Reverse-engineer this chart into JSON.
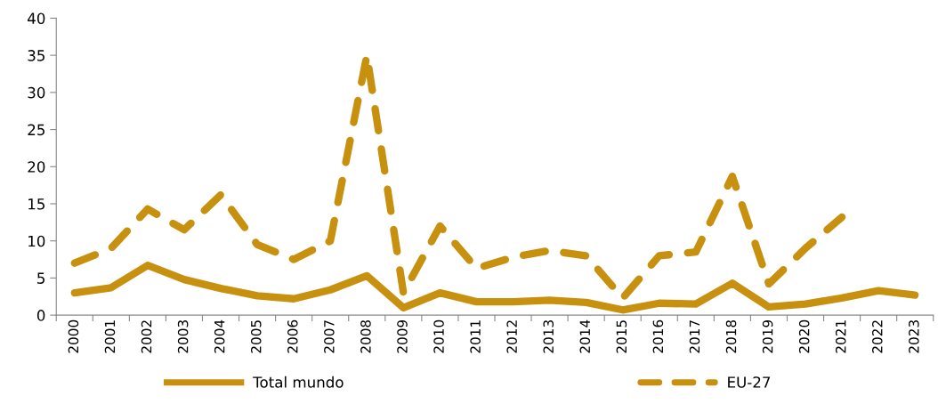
{
  "chart_data": {
    "type": "line",
    "categories": [
      "2000",
      "2001",
      "2002",
      "2003",
      "2004",
      "2005",
      "2006",
      "2007",
      "2008",
      "2009",
      "2010",
      "2011",
      "2012",
      "2013",
      "2014",
      "2015",
      "2016",
      "2017",
      "2018",
      "2019",
      "2020",
      "2021",
      "2022",
      "2023"
    ],
    "series": [
      {
        "name": "Total mundo",
        "color": "#c8900f",
        "line_style": "solid",
        "values": [
          3.0,
          3.7,
          6.7,
          4.8,
          3.6,
          2.6,
          2.2,
          3.4,
          5.3,
          1.0,
          3.0,
          1.8,
          1.8,
          2.0,
          1.7,
          0.7,
          1.6,
          1.5,
          4.3,
          1.1,
          1.5,
          2.3,
          3.3,
          2.7
        ]
      },
      {
        "name": "EU-27",
        "color": "#c8900f",
        "line_style": "dashed",
        "values": [
          7.0,
          9.0,
          14.3,
          11.5,
          16.2,
          9.5,
          7.5,
          10.0,
          35.0,
          3.0,
          12.0,
          6.3,
          7.8,
          8.7,
          8.0,
          2.3,
          8.0,
          8.5,
          18.7,
          4.2,
          9.0,
          13.2,
          null,
          null
        ]
      }
    ],
    "ylim": [
      0,
      40
    ],
    "yticks": [
      0,
      5,
      10,
      15,
      20,
      25,
      30,
      35,
      40
    ],
    "grid": false,
    "legend": "bottom",
    "marker": "none"
  }
}
